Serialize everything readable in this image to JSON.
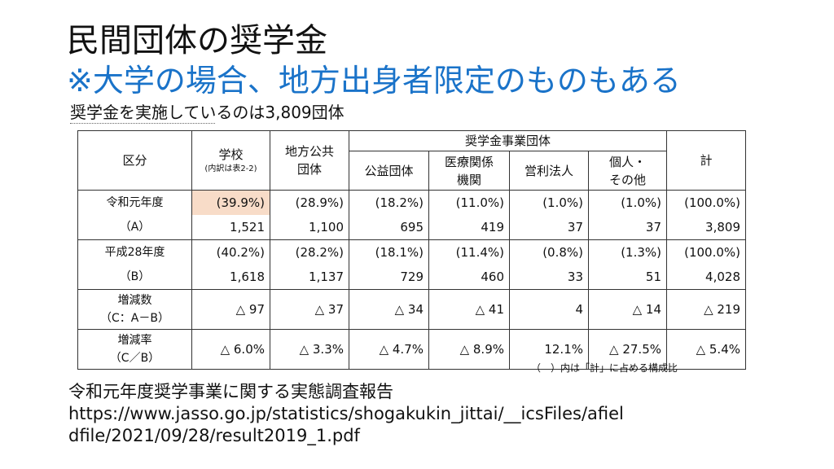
{
  "title": "民間団体の奨学金",
  "subtitle": "※大学の場合、地方出身者限定のものもある",
  "caption": "奨学金を実施しているのは3,809団体",
  "table": {
    "header_category": "区分",
    "header_school": "学校",
    "header_school_note": "(内訳は表2-2)",
    "header_local_gov_line1": "地方公共",
    "header_local_gov_line2": "団体",
    "header_scholarship_orgs": "奨学金事業団体",
    "header_public_interest": "公益団体",
    "header_medical_line1": "医療関係",
    "header_medical_line2": "機関",
    "header_for_profit": "営利法人",
    "header_individual_line1": "個人・",
    "header_individual_line2": "その他",
    "header_total": "計",
    "rows": [
      {
        "label1": "令和元年度",
        "label2": "（A）",
        "pct": [
          "(39.9%)",
          "(28.9%)",
          "(18.2%)",
          "(11.0%)",
          "(1.0%)",
          "(1.0%)",
          "(100.0%)"
        ],
        "num": [
          "1,521",
          "1,100",
          "695",
          "419",
          "37",
          "37",
          "3,809"
        ]
      },
      {
        "label1": "平成28年度",
        "label2": "（B）",
        "pct": [
          "(40.2%)",
          "(28.2%)",
          "(18.1%)",
          "(11.4%)",
          "(0.8%)",
          "(1.3%)",
          "(100.0%)"
        ],
        "num": [
          "1,618",
          "1,137",
          "729",
          "460",
          "33",
          "51",
          "4,028"
        ]
      }
    ],
    "diff_row": {
      "label1": "増減数",
      "label2": "（C：A－B）",
      "values": [
        "△ 97",
        "△ 37",
        "△ 34",
        "△ 41",
        "4",
        "△ 14",
        "△ 219"
      ]
    },
    "rate_row": {
      "label1": "増減率",
      "label2": "（C／B）",
      "values": [
        "△ 6.0%",
        "△ 3.3%",
        "△ 4.7%",
        "△ 8.9%",
        "12.1%",
        "△ 27.5%",
        "△ 5.4%"
      ]
    },
    "note": "（　）内は「計」に占める構成比"
  },
  "source_line1": "令和元年度奨学事業に関する実態調査報告",
  "source_line2": "https://www.jasso.go.jp/statistics/shogakukin_jittai/__icsFiles/afiel",
  "source_line3": "dfile/2021/09/28/result2019_1.pdf",
  "colors": {
    "subtitle": "#1a73c9",
    "highlight": "#f8dcc8"
  }
}
